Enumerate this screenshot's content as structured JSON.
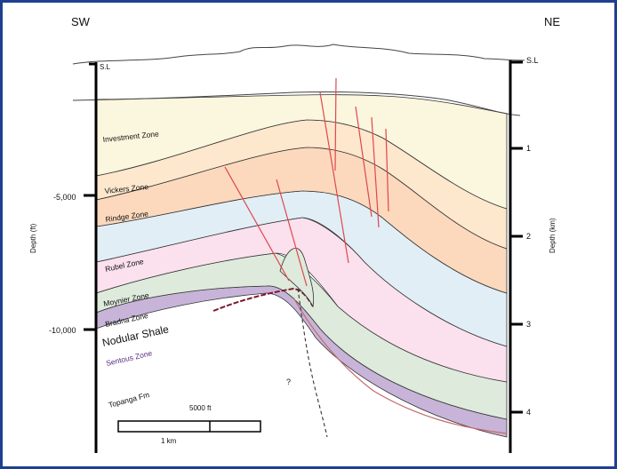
{
  "orientation": {
    "left": "SW",
    "right": "NE"
  },
  "datum": {
    "left": "S.L",
    "right": "S.L"
  },
  "left_axis": {
    "label": "Depth (ft)",
    "ticks": [
      "-5,000",
      "-10,000"
    ]
  },
  "right_axis": {
    "label": "Depth (km)",
    "ticks": [
      "1",
      "2",
      "3",
      "4"
    ]
  },
  "zones": [
    "Investment Zone",
    "Vickers Zone",
    "Rindge Zone",
    "Rubel Zone",
    "Moynier Zone",
    "Bradna Zone",
    "Nodular Shale",
    "Sentous Zone",
    "Topanga Fm"
  ],
  "fault_query": "?",
  "scale_bar": {
    "top_label": "5000 ft",
    "bottom_label": "1 km"
  },
  "colors": {
    "frame": "#1e3f91",
    "investment": "#fbf6de",
    "vickers": "#fde7cd",
    "rindge": "#fcd9bd",
    "rubel": "#e1eef6",
    "moynier": "#fbe0ee",
    "bradna": "#deeadb",
    "sentous": "#c8b4d8",
    "fault": "#e0474c"
  }
}
